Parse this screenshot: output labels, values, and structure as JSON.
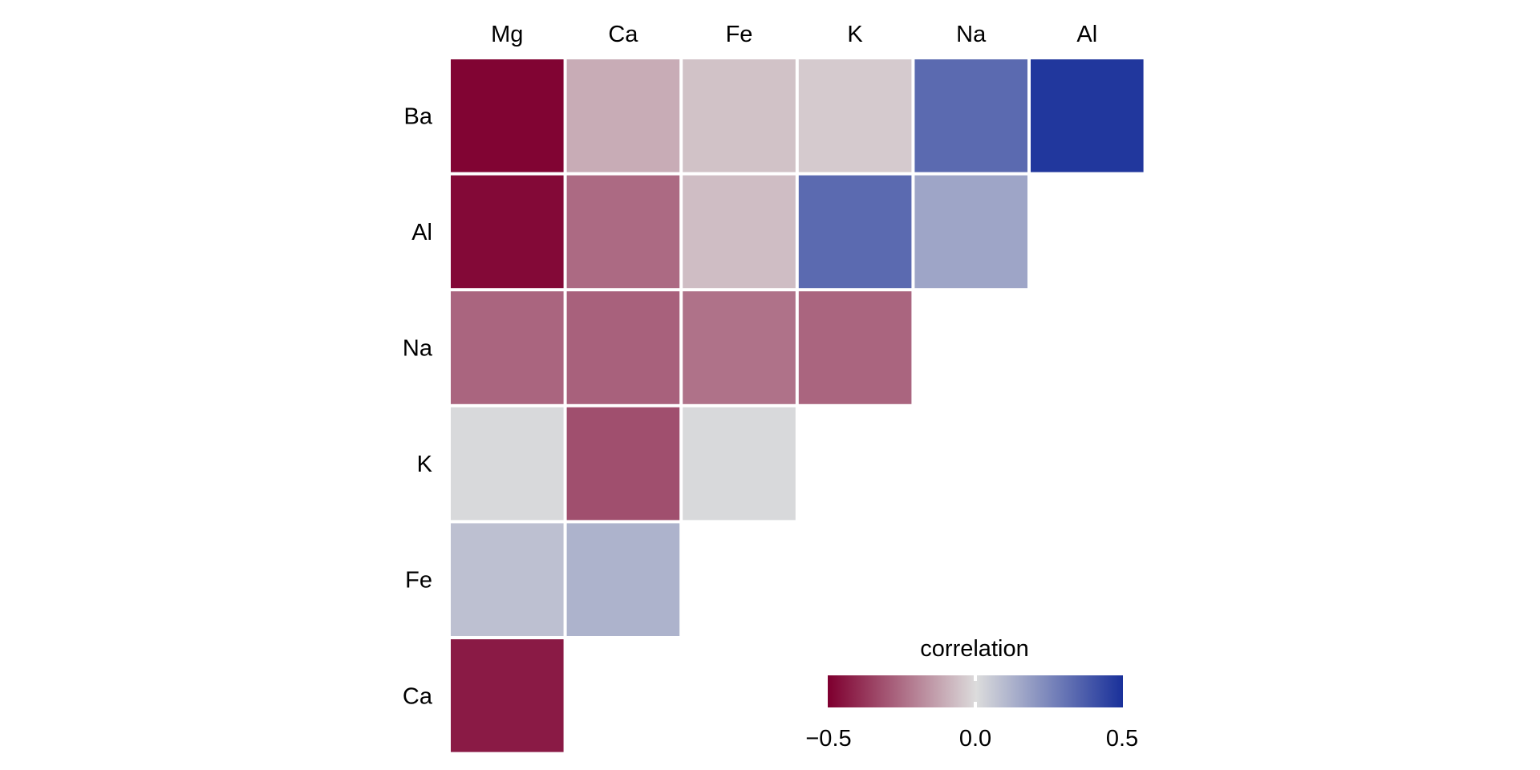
{
  "chart_data": {
    "type": "heatmap",
    "title": "",
    "x_categories": [
      "Mg",
      "Ca",
      "Fe",
      "K",
      "Na",
      "Al"
    ],
    "y_categories": [
      "Ba",
      "Al",
      "Na",
      "K",
      "Fe",
      "Ca"
    ],
    "values": [
      [
        -0.49,
        -0.11,
        -0.06,
        -0.04,
        0.33,
        0.48
      ],
      [
        -0.48,
        -0.26,
        -0.07,
        0.33,
        0.16,
        null
      ],
      [
        -0.27,
        -0.28,
        -0.24,
        -0.27,
        null,
        null
      ],
      [
        0.01,
        -0.32,
        0.01,
        null,
        null,
        null
      ],
      [
        0.08,
        0.12,
        null,
        null,
        null,
        null
      ],
      [
        -0.44,
        null,
        null,
        null,
        null,
        null
      ]
    ],
    "legend": {
      "title": "correlation",
      "range": [
        -0.5,
        0.5
      ],
      "ticks": [
        "−0.5",
        "0.0",
        "0.5"
      ],
      "placement": "bottom-right",
      "colors": {
        "low": "#7f0030",
        "mid": "#dcdcdc",
        "high": "#19309a"
      }
    }
  }
}
